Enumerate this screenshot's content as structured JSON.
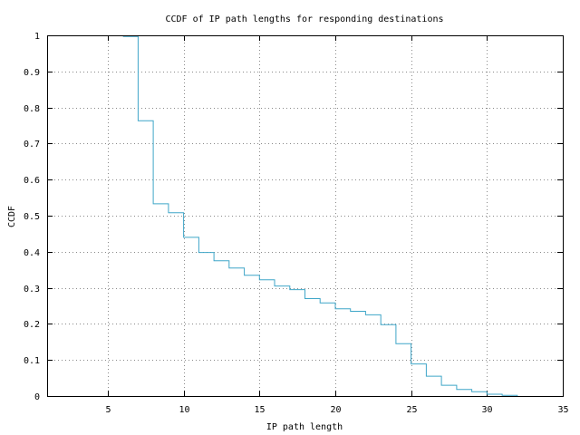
{
  "chart_data": {
    "type": "line",
    "step": true,
    "title": "CCDF of IP path lengths for responding destinations",
    "xlabel": "IP path length",
    "ylabel": "CCDF",
    "xlim": [
      1,
      35
    ],
    "ylim": [
      0,
      1
    ],
    "x_ticks": [
      5,
      10,
      15,
      20,
      25,
      30,
      35
    ],
    "y_ticks": [
      0,
      0.1,
      0.2,
      0.3,
      0.4,
      0.5,
      0.6,
      0.7,
      0.8,
      0.9,
      1
    ],
    "x_tick_labels": [
      "5",
      "10",
      "15",
      "20",
      "25",
      "30",
      "35"
    ],
    "y_tick_labels": [
      "0",
      "0.1",
      "0.2",
      "0.3",
      "0.4",
      "0.5",
      "0.6",
      "0.7",
      "0.8",
      "0.9",
      "1"
    ],
    "grid": true,
    "line_color": "#3fa6c8",
    "series": [
      {
        "x": [
          6,
          7,
          8,
          9,
          10,
          11,
          12,
          13,
          14,
          15,
          16,
          17,
          18,
          19,
          20,
          21,
          22,
          23,
          24,
          25,
          26,
          27,
          28,
          29,
          30,
          31,
          32
        ],
        "y": [
          0.997,
          0.763,
          0.533,
          0.508,
          0.44,
          0.398,
          0.375,
          0.355,
          0.335,
          0.322,
          0.305,
          0.295,
          0.27,
          0.258,
          0.242,
          0.235,
          0.225,
          0.198,
          0.145,
          0.089,
          0.055,
          0.03,
          0.018,
          0.012,
          0.005,
          0.002,
          0
        ]
      }
    ]
  }
}
